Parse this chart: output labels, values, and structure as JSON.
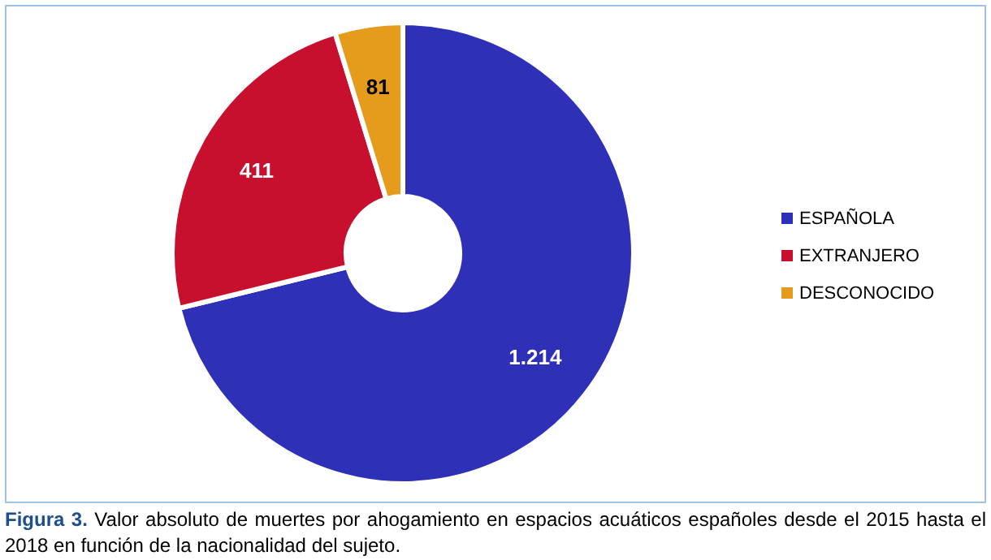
{
  "chart_data": {
    "type": "donut",
    "categories": [
      "ESPAÑOLA",
      "EXTRANJERO",
      "DESCONOCIDO"
    ],
    "values": [
      1214,
      411,
      81
    ],
    "value_labels": [
      "1.214",
      "411",
      "81"
    ],
    "colors": [
      "#2e31b8",
      "#c8102e",
      "#e59c1c"
    ],
    "legend": "right",
    "annotations": [
      "Figura 3.",
      "Valor absoluto de muertes por ahogamiento en espacios acuáticos españoles desde el 2015 hasta el 2018 en función de la nacionalidad del sujeto."
    ]
  }
}
